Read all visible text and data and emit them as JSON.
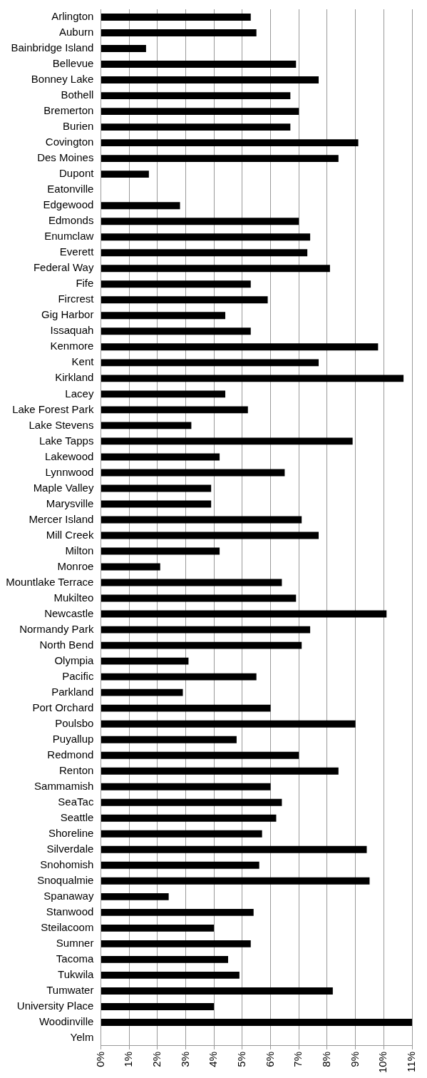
{
  "chart_data": {
    "type": "bar",
    "orientation": "horizontal",
    "color": "#000000",
    "grid": "x",
    "legend": false,
    "categories": [
      "Arlington",
      "Auburn",
      "Bainbridge Island",
      "Bellevue",
      "Bonney Lake",
      "Bothell",
      "Bremerton",
      "Burien",
      "Covington",
      "Des Moines",
      "Dupont",
      "Eatonville",
      "Edgewood",
      "Edmonds",
      "Enumclaw",
      "Everett",
      "Federal Way",
      "Fife",
      "Fircrest",
      "Gig Harbor",
      "Issaquah",
      "Kenmore",
      "Kent",
      "Kirkland",
      "Lacey",
      "Lake Forest Park",
      "Lake Stevens",
      "Lake Tapps",
      "Lakewood",
      "Lynnwood",
      "Maple Valley",
      "Marysville",
      "Mercer Island",
      "Mill Creek",
      "Milton",
      "Monroe",
      "Mountlake Terrace",
      "Mukilteo",
      "Newcastle",
      "Normandy Park",
      "North Bend",
      "Olympia",
      "Pacific",
      "Parkland",
      "Port Orchard",
      "Poulsbo",
      "Puyallup",
      "Redmond",
      "Renton",
      "Sammamish",
      "SeaTac",
      "Seattle",
      "Shoreline",
      "Silverdale",
      "Snohomish",
      "Snoqualmie",
      "Spanaway",
      "Stanwood",
      "Steilacoom",
      "Sumner",
      "Tacoma",
      "Tukwila",
      "Tumwater",
      "University Place",
      "Woodinville",
      "Yelm"
    ],
    "values": [
      5.3,
      5.5,
      1.6,
      6.9,
      7.7,
      6.7,
      7.0,
      6.7,
      9.1,
      8.4,
      1.7,
      0,
      2.8,
      7.0,
      7.4,
      7.3,
      8.1,
      5.3,
      5.9,
      4.4,
      5.3,
      9.8,
      7.7,
      10.7,
      4.4,
      5.2,
      3.2,
      8.9,
      4.2,
      6.5,
      3.9,
      3.9,
      7.1,
      7.7,
      4.2,
      2.1,
      6.4,
      6.9,
      10.1,
      7.4,
      7.1,
      3.1,
      5.5,
      2.9,
      6.0,
      9.0,
      4.8,
      7.0,
      8.4,
      6.0,
      6.4,
      6.2,
      5.7,
      9.4,
      5.6,
      9.5,
      2.4,
      5.4,
      4.0,
      5.3,
      4.5,
      4.9,
      8.2,
      4.0,
      11.0,
      0
    ],
    "xlim": [
      0,
      11
    ],
    "xticks": [
      {
        "value": 0,
        "label": "0%"
      },
      {
        "value": 1,
        "label": "1%"
      },
      {
        "value": 2,
        "label": "2%"
      },
      {
        "value": 3,
        "label": "3%"
      },
      {
        "value": 4,
        "label": "4%"
      },
      {
        "value": 5,
        "label": "5%"
      },
      {
        "value": 6,
        "label": "6%"
      },
      {
        "value": 7,
        "label": "7%"
      },
      {
        "value": 8,
        "label": "8%"
      },
      {
        "value": 9,
        "label": "9%"
      },
      {
        "value": 10,
        "label": "10%"
      },
      {
        "value": 11,
        "label": "11%"
      }
    ]
  }
}
